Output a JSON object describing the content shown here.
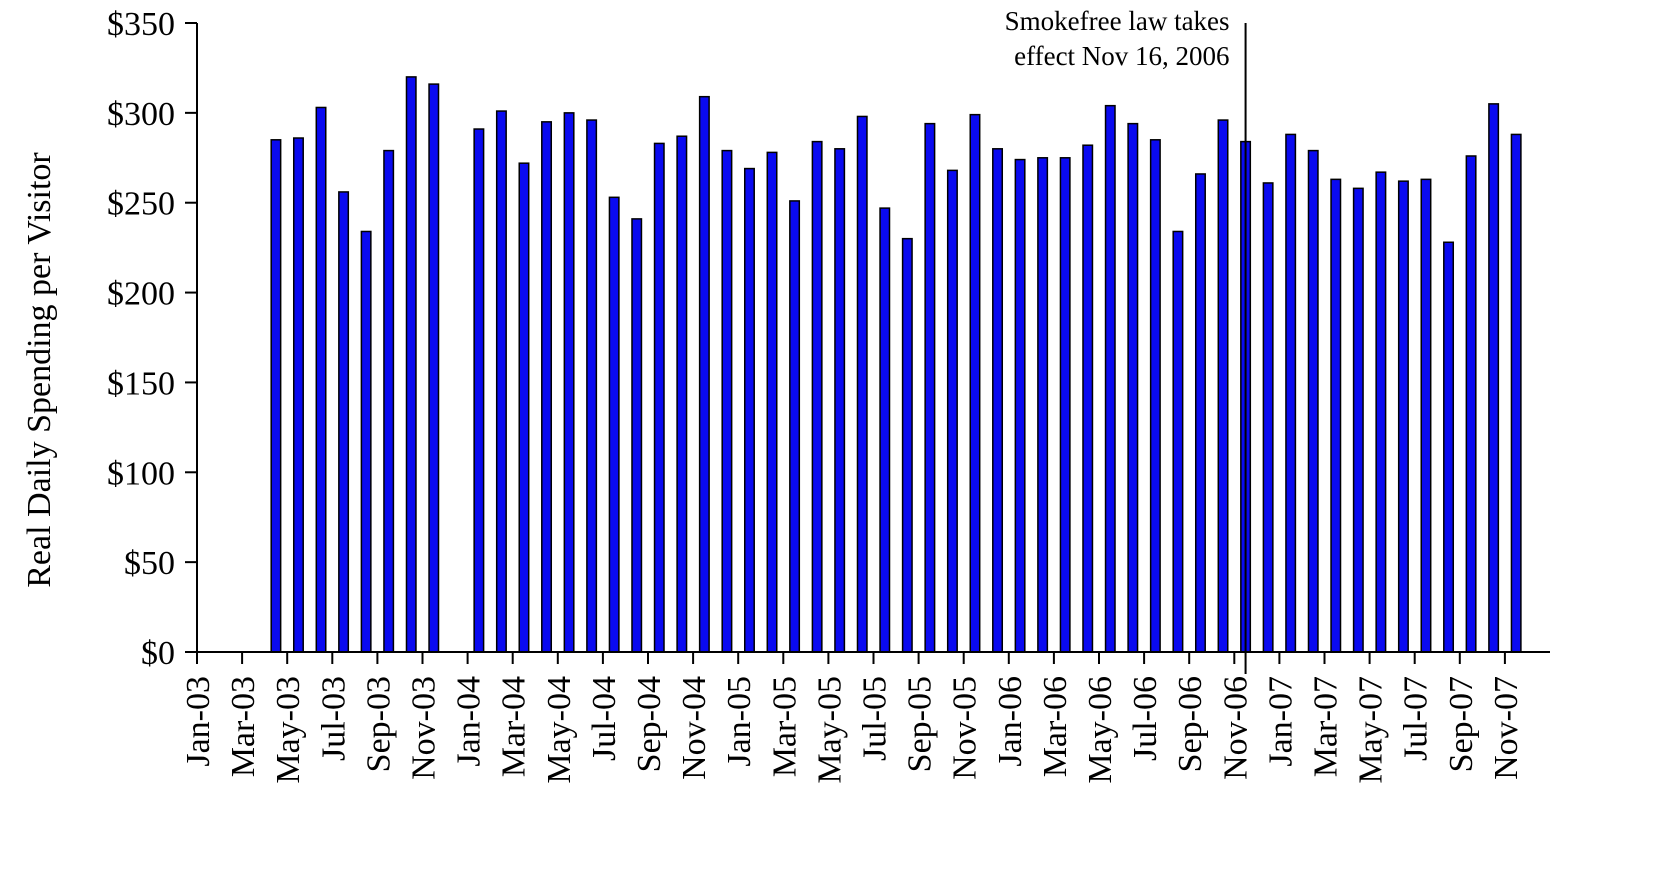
{
  "chart_data": {
    "type": "bar",
    "title": "",
    "xlabel": "",
    "ylabel": "Real Daily Spending per Visitor",
    "ylim": [
      0,
      350
    ],
    "yticks": [
      0,
      50,
      100,
      150,
      200,
      250,
      300,
      350
    ],
    "ytick_labels": [
      "$0",
      "$50",
      "$100",
      "$150",
      "$200",
      "$250",
      "$300",
      "$350"
    ],
    "grid": false,
    "legend": "none",
    "bar_color": "#0a0af0",
    "categories": [
      "Jan-03",
      "Feb-03",
      "Mar-03",
      "Apr-03",
      "May-03",
      "Jun-03",
      "Jul-03",
      "Aug-03",
      "Sep-03",
      "Oct-03",
      "Nov-03",
      "Dec-03",
      "Jan-04",
      "Feb-04",
      "Mar-04",
      "Apr-04",
      "May-04",
      "Jun-04",
      "Jul-04",
      "Aug-04",
      "Sep-04",
      "Oct-04",
      "Nov-04",
      "Dec-04",
      "Jan-05",
      "Feb-05",
      "Mar-05",
      "Apr-05",
      "May-05",
      "Jun-05",
      "Jul-05",
      "Aug-05",
      "Sep-05",
      "Oct-05",
      "Nov-05",
      "Dec-05",
      "Jan-06",
      "Feb-06",
      "Mar-06",
      "Apr-06",
      "May-06",
      "Jun-06",
      "Jul-06",
      "Aug-06",
      "Sep-06",
      "Oct-06",
      "Nov-06",
      "Dec-06",
      "Jan-07",
      "Feb-07",
      "Mar-07",
      "Apr-07",
      "May-07",
      "Jun-07",
      "Jul-07",
      "Aug-07",
      "Sep-07",
      "Oct-07",
      "Nov-07",
      "Dec-07"
    ],
    "xtick_labels": [
      "Jan-03",
      "Mar-03",
      "May-03",
      "Jul-03",
      "Sep-03",
      "Nov-03",
      "Jan-04",
      "Mar-04",
      "May-04",
      "Jul-04",
      "Sep-04",
      "Nov-04",
      "Jan-05",
      "Mar-05",
      "May-05",
      "Jul-05",
      "Sep-05",
      "Nov-05",
      "Jan-06",
      "Mar-06",
      "May-06",
      "Jul-06",
      "Sep-06",
      "Nov-06",
      "Jan-07",
      "Mar-07",
      "May-07",
      "Jul-07",
      "Sep-07",
      "Nov-07"
    ],
    "values": [
      null,
      null,
      null,
      285,
      286,
      303,
      256,
      234,
      279,
      320,
      316,
      null,
      291,
      301,
      272,
      295,
      300,
      296,
      253,
      241,
      283,
      287,
      309,
      279,
      269,
      278,
      251,
      284,
      280,
      298,
      247,
      230,
      294,
      268,
      299,
      280,
      274,
      275,
      275,
      282,
      304,
      294,
      285,
      234,
      266,
      296,
      284,
      261,
      288,
      279,
      263,
      258,
      267,
      262,
      263,
      228,
      276,
      305,
      288,
      null
    ],
    "annotation": {
      "lines": [
        "Smokefree law takes",
        "effect Nov 16, 2006"
      ],
      "at": "2006-11-16"
    }
  }
}
